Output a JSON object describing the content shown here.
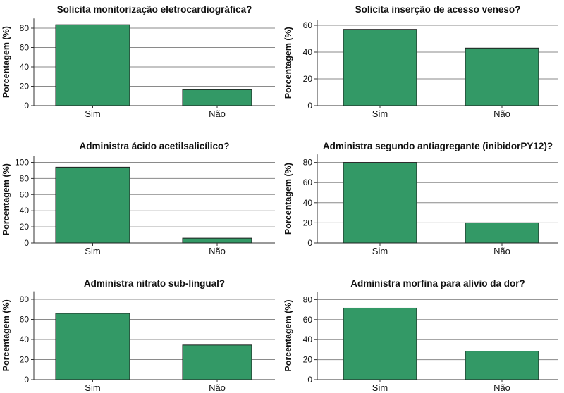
{
  "colors": {
    "bar": "#339966",
    "bar_stroke": "#1e1e1e",
    "grid": "#8a8a8a",
    "axis": "#333333"
  },
  "chart_data": [
    {
      "type": "bar",
      "title": "Solicita monitorização eletrocardiográfica?",
      "ylabel": "Porcentagem (%)",
      "categories": [
        "Sim",
        "Não"
      ],
      "values": [
        83.5,
        16.5
      ],
      "ylim": [
        0,
        90
      ],
      "yticks": [
        0,
        20,
        40,
        60,
        80
      ],
      "grid": true
    },
    {
      "type": "bar",
      "title": "Solicita inserção de acesso veneso?",
      "ylabel": "Porcentagem (%)",
      "categories": [
        "Sim",
        "Não"
      ],
      "values": [
        57,
        43
      ],
      "ylim": [
        0,
        64
      ],
      "yticks": [
        0,
        20,
        40,
        60
      ],
      "grid": true
    },
    {
      "type": "bar",
      "title": "Administra ácido acetilsalicílico?",
      "ylabel": "Porcentagem (%)",
      "categories": [
        "Sim",
        "Não"
      ],
      "values": [
        94,
        6
      ],
      "ylim": [
        0,
        108
      ],
      "yticks": [
        0,
        20,
        40,
        60,
        80,
        100
      ],
      "grid": true
    },
    {
      "type": "bar",
      "title": "Administra segundo antiagregante (inibidorPY12)?",
      "ylabel": "Porcentagem (%)",
      "categories": [
        "Sim",
        "Não"
      ],
      "values": [
        80,
        20
      ],
      "ylim": [
        0,
        88
      ],
      "yticks": [
        0,
        20,
        40,
        60,
        80
      ],
      "grid": true
    },
    {
      "type": "bar",
      "title": "Administra nitrato sub-lingual?",
      "ylabel": "Porcentagem (%)",
      "categories": [
        "Sim",
        "Não"
      ],
      "values": [
        66,
        34.5
      ],
      "ylim": [
        0,
        88
      ],
      "yticks": [
        0,
        20,
        40,
        60,
        80
      ],
      "grid": true
    },
    {
      "type": "bar",
      "title": "Administra morfina para alívio da dor?",
      "ylabel": "Porcentagem (%)",
      "categories": [
        "Sim",
        "Não"
      ],
      "values": [
        71.5,
        28.5
      ],
      "ylim": [
        0,
        88
      ],
      "yticks": [
        0,
        20,
        40,
        60,
        80
      ],
      "grid": true
    }
  ]
}
